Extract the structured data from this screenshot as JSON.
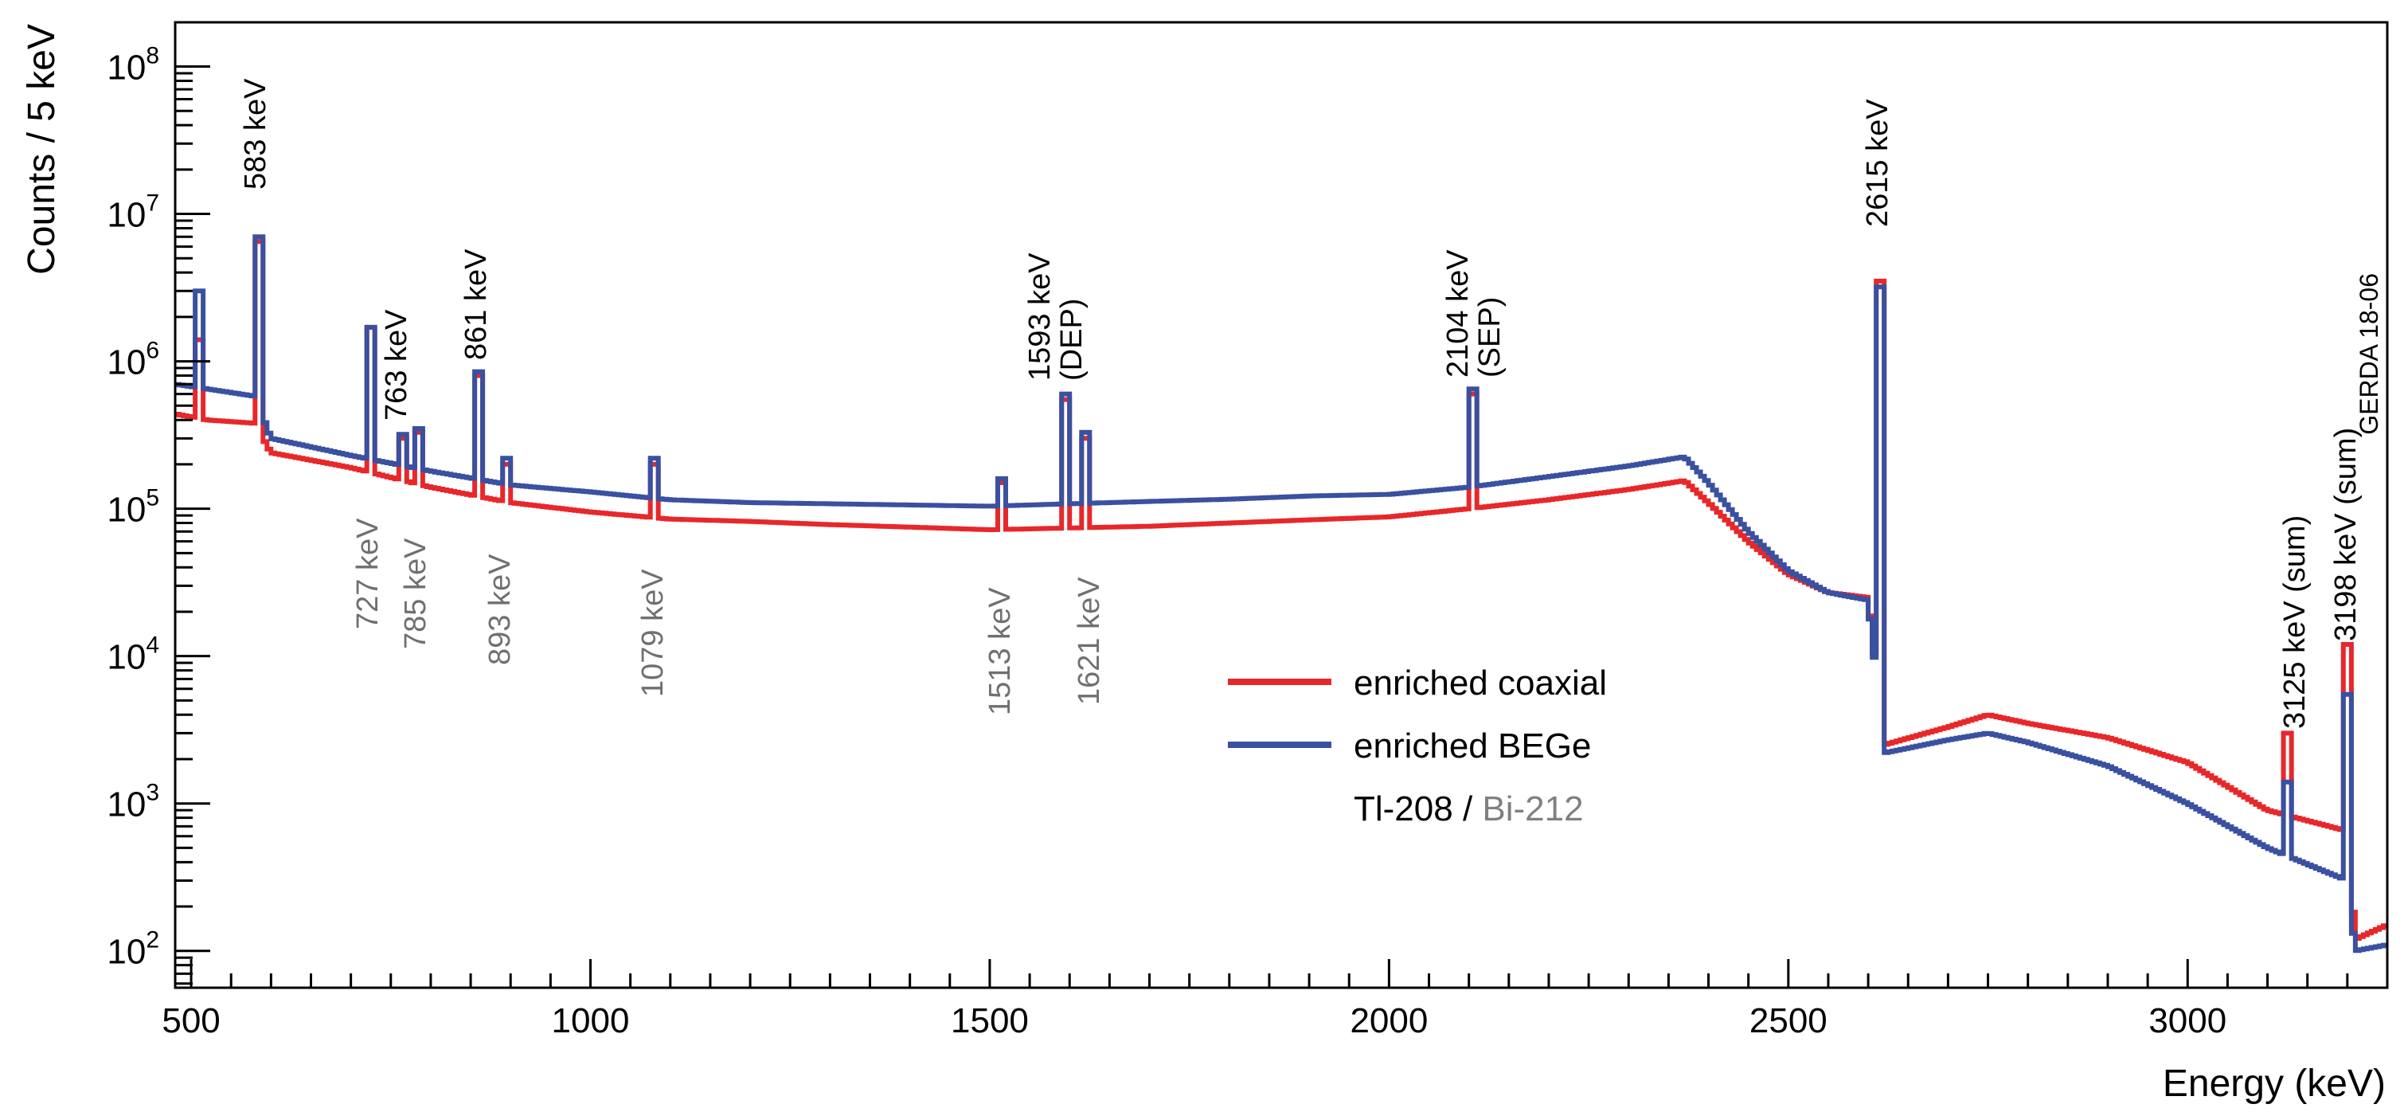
{
  "chart_data": {
    "type": "line",
    "title": "",
    "xlabel": "Energy (keV)",
    "ylabel": "Counts / 5 keV",
    "xlim": [
      480,
      3250
    ],
    "ylim_log10": [
      1.75,
      8.3
    ],
    "x_ticks": [
      500,
      1000,
      1500,
      2000,
      2500,
      3000
    ],
    "x_tick_labels": [
      "500",
      "1000",
      "1500",
      "2000",
      "2500",
      "3000"
    ],
    "y_ticks_log10": [
      2,
      3,
      4,
      5,
      6,
      7,
      8
    ],
    "y_tick_labels": [
      {
        "base": "10",
        "exp": "2"
      },
      {
        "base": "10",
        "exp": "3"
      },
      {
        "base": "10",
        "exp": "4"
      },
      {
        "base": "10",
        "exp": "5"
      },
      {
        "base": "10",
        "exp": "6"
      },
      {
        "base": "10",
        "exp": "7"
      },
      {
        "base": "10",
        "exp": "8"
      }
    ],
    "stamp": "GERDA 18-06",
    "legend": {
      "position": "center-right",
      "entries": [
        {
          "name": "enriched coaxial",
          "color": "#e8272a"
        },
        {
          "name": "enriched BEGe",
          "color": "#3a50a0"
        }
      ],
      "note_black": "Tl-208",
      "note_sep": " / ",
      "note_grey": "Bi-212"
    },
    "series": [
      {
        "name": "enriched coaxial",
        "color": "#e8272a",
        "continuum": [
          [
            480,
            440000
          ],
          [
            520,
            400000
          ],
          [
            580,
            380000
          ],
          [
            600,
            240000
          ],
          [
            700,
            190000
          ],
          [
            800,
            140000
          ],
          [
            900,
            110000
          ],
          [
            1000,
            95000
          ],
          [
            1100,
            85000
          ],
          [
            1200,
            82000
          ],
          [
            1300,
            78000
          ],
          [
            1400,
            75000
          ],
          [
            1500,
            72000
          ],
          [
            1600,
            74000
          ],
          [
            1700,
            76000
          ],
          [
            1800,
            80000
          ],
          [
            1900,
            84000
          ],
          [
            2000,
            88000
          ],
          [
            2100,
            100000
          ],
          [
            2200,
            115000
          ],
          [
            2300,
            135000
          ],
          [
            2370,
            155000
          ],
          [
            2400,
            110000
          ],
          [
            2450,
            60000
          ],
          [
            2500,
            36000
          ],
          [
            2550,
            27000
          ],
          [
            2600,
            25000
          ],
          [
            2620,
            2500
          ],
          [
            2700,
            3300
          ],
          [
            2750,
            4000
          ],
          [
            2800,
            3500
          ],
          [
            2900,
            2800
          ],
          [
            3000,
            1900
          ],
          [
            3100,
            900
          ],
          [
            3200,
            650
          ],
          [
            3210,
            120
          ],
          [
            3250,
            150
          ]
        ],
        "peaks": [
          [
            511,
            1400000
          ],
          [
            583,
            6500000
          ],
          [
            727,
            1700000
          ],
          [
            763,
            300000
          ],
          [
            785,
            330000
          ],
          [
            861,
            800000
          ],
          [
            893,
            200000
          ],
          [
            1079,
            200000
          ],
          [
            1513,
            150000
          ],
          [
            1593,
            550000
          ],
          [
            1621,
            300000
          ],
          [
            2104,
            600000
          ],
          [
            2615,
            3500000
          ],
          [
            3125,
            3000
          ],
          [
            3198,
            12000
          ]
        ]
      },
      {
        "name": "enriched BEGe",
        "color": "#3a50a0",
        "continuum": [
          [
            480,
            700000
          ],
          [
            520,
            650000
          ],
          [
            580,
            580000
          ],
          [
            600,
            300000
          ],
          [
            700,
            230000
          ],
          [
            800,
            180000
          ],
          [
            900,
            145000
          ],
          [
            1000,
            130000
          ],
          [
            1100,
            115000
          ],
          [
            1200,
            110000
          ],
          [
            1300,
            108000
          ],
          [
            1400,
            106000
          ],
          [
            1500,
            104000
          ],
          [
            1600,
            108000
          ],
          [
            1700,
            112000
          ],
          [
            1800,
            116000
          ],
          [
            1900,
            122000
          ],
          [
            2000,
            125000
          ],
          [
            2100,
            140000
          ],
          [
            2200,
            165000
          ],
          [
            2300,
            195000
          ],
          [
            2370,
            225000
          ],
          [
            2400,
            150000
          ],
          [
            2450,
            70000
          ],
          [
            2500,
            38000
          ],
          [
            2550,
            27000
          ],
          [
            2600,
            24000
          ],
          [
            2620,
            2200
          ],
          [
            2700,
            2700
          ],
          [
            2750,
            3000
          ],
          [
            2800,
            2600
          ],
          [
            2900,
            1800
          ],
          [
            3000,
            1000
          ],
          [
            3100,
            500
          ],
          [
            3200,
            300
          ],
          [
            3210,
            100
          ],
          [
            3250,
            110
          ]
        ],
        "peaks": [
          [
            511,
            3000000
          ],
          [
            583,
            7000000
          ],
          [
            727,
            1700000
          ],
          [
            763,
            320000
          ],
          [
            785,
            350000
          ],
          [
            861,
            850000
          ],
          [
            893,
            220000
          ],
          [
            1079,
            220000
          ],
          [
            1513,
            160000
          ],
          [
            1593,
            600000
          ],
          [
            1621,
            330000
          ],
          [
            2104,
            650000
          ],
          [
            2615,
            3200000
          ],
          [
            3125,
            1400
          ],
          [
            3198,
            5500
          ]
        ]
      }
    ],
    "annotations": [
      {
        "lines": [
          "583 keV"
        ],
        "energy": 583,
        "color": "black"
      },
      {
        "lines": [
          "763 keV"
        ],
        "energy": 763,
        "color": "black"
      },
      {
        "lines": [
          "861 keV"
        ],
        "energy": 861,
        "color": "black"
      },
      {
        "lines": [
          "1593 keV",
          "(DEP)"
        ],
        "energy": 1593,
        "color": "black"
      },
      {
        "lines": [
          "2104 keV",
          "(SEP)"
        ],
        "energy": 2104,
        "color": "black"
      },
      {
        "lines": [
          "2615 keV"
        ],
        "energy": 2615,
        "color": "black"
      },
      {
        "lines": [
          "3125 keV (sum)"
        ],
        "energy": 3125,
        "color": "black"
      },
      {
        "lines": [
          "3198 keV (sum)"
        ],
        "energy": 3198,
        "color": "black"
      },
      {
        "lines": [
          "727 keV"
        ],
        "energy": 727,
        "color": "grey"
      },
      {
        "lines": [
          "785 keV"
        ],
        "energy": 785,
        "color": "grey"
      },
      {
        "lines": [
          "893 keV"
        ],
        "energy": 893,
        "color": "grey"
      },
      {
        "lines": [
          "1079 keV"
        ],
        "energy": 1079,
        "color": "grey"
      },
      {
        "lines": [
          "1513 keV"
        ],
        "energy": 1513,
        "color": "grey"
      },
      {
        "lines": [
          "1621 keV"
        ],
        "energy": 1621,
        "color": "grey"
      }
    ]
  }
}
